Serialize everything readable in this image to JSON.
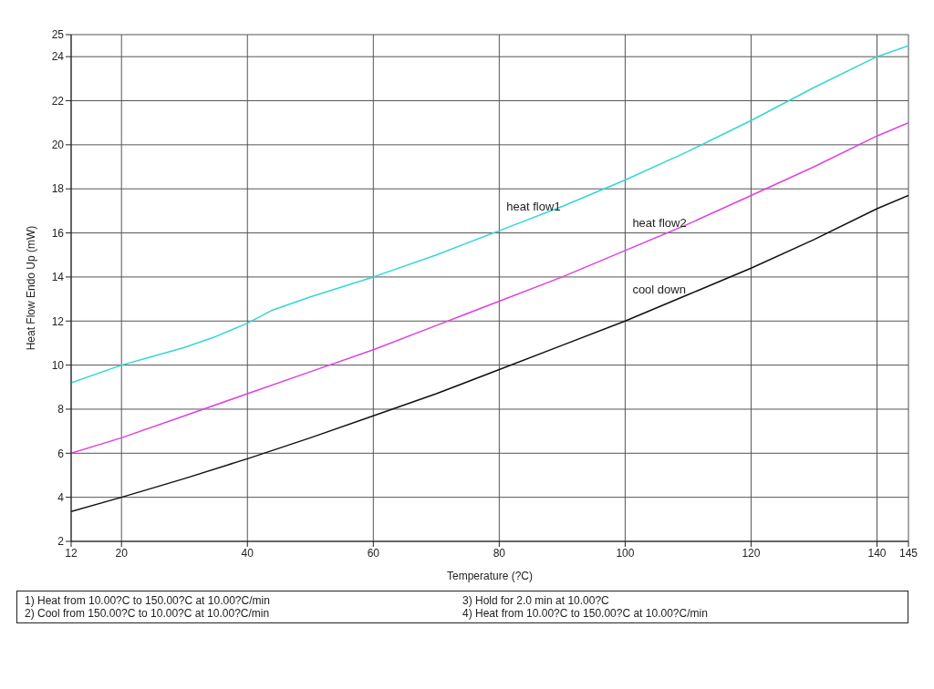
{
  "chart_data": {
    "type": "line",
    "xlabel": "Temperature (?C)",
    "ylabel": "Heat Flow Endo Up (mW)",
    "xlim": [
      12,
      145
    ],
    "xticks": [
      12,
      20,
      40,
      60,
      80,
      100,
      120,
      140,
      145
    ],
    "ylim": [
      2,
      25
    ],
    "yticks": [
      2,
      4,
      6,
      8,
      10,
      12,
      14,
      16,
      18,
      20,
      22,
      24,
      25
    ],
    "grid": true,
    "legend": false,
    "marker": "none",
    "line_style": "solid",
    "series": [
      {
        "name": "heat flow1",
        "color": "#33d6d6",
        "x": [
          12,
          20,
          25,
          30,
          35,
          40,
          42,
          44,
          50,
          60,
          70,
          80,
          90,
          100,
          110,
          120,
          130,
          140,
          145
        ],
        "values": [
          9.2,
          10.0,
          10.4,
          10.8,
          11.3,
          11.9,
          12.2,
          12.5,
          13.1,
          14.0,
          15.0,
          16.1,
          17.2,
          18.4,
          19.7,
          21.1,
          22.6,
          24.0,
          24.5
        ]
      },
      {
        "name": "heat flow2",
        "color": "#e040e0",
        "x": [
          12,
          20,
          30,
          40,
          50,
          60,
          70,
          80,
          90,
          100,
          110,
          120,
          130,
          140,
          145
        ],
        "values": [
          6.0,
          6.7,
          7.7,
          8.7,
          9.7,
          10.7,
          11.8,
          12.9,
          14.0,
          15.2,
          16.4,
          17.7,
          19.0,
          20.4,
          21.0
        ]
      },
      {
        "name": "cool down",
        "color": "#111111",
        "x": [
          12,
          20,
          30,
          40,
          50,
          60,
          70,
          80,
          90,
          100,
          110,
          120,
          130,
          140,
          145
        ],
        "values": [
          3.35,
          4.0,
          4.85,
          5.75,
          6.7,
          7.7,
          8.7,
          9.8,
          10.9,
          12.0,
          13.2,
          14.4,
          15.7,
          17.1,
          17.7
        ]
      }
    ],
    "annotations": [
      "1) Heat from 10.00?C to 150.00?C at 10.00?C/min",
      "2) Cool from 150.00?C to 10.00?C at 10.00?C/min",
      "3) Hold for 2.0 min at 10.00?C",
      "4) Heat from 10.00?C to 150.00?C at 10.00?C/min"
    ]
  }
}
